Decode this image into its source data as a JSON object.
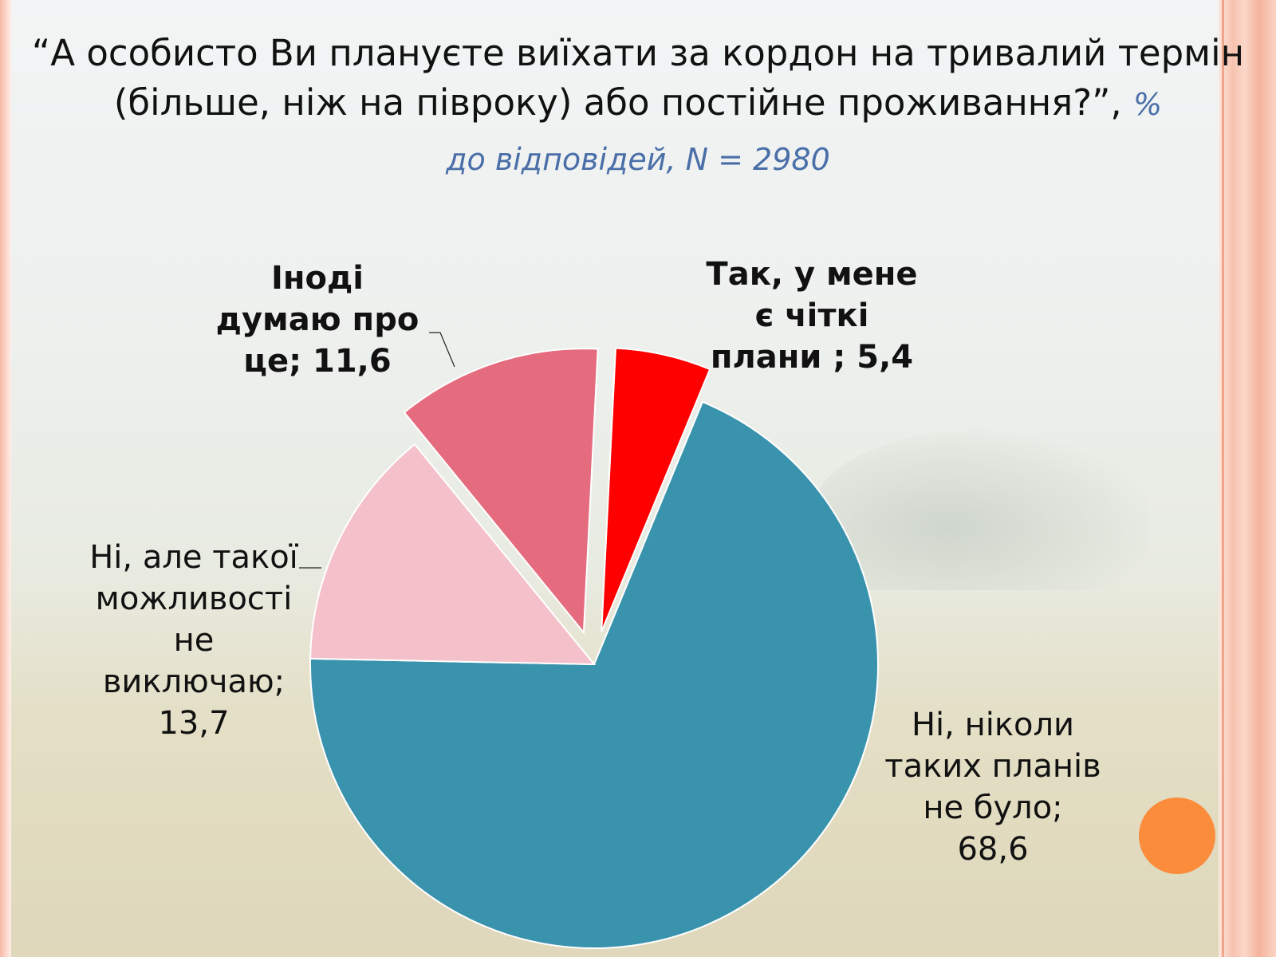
{
  "title": "“А особисто Ви плануєте виїхати за кордон на тривалий термін (більше, ніж на півроку) або постійне проживання?”,",
  "title_unit": "%",
  "subtitle": "до відповідей, N = 2980",
  "colors": {
    "accent": "#fb8c3c",
    "subtitle": "#4a6fa8"
  },
  "chart_data": {
    "type": "pie",
    "legend": "none (data labels next to slices)",
    "slices": [
      {
        "label_lines": [
          "Так, у мене",
          "є чіткі",
          "плани ; 5,4"
        ],
        "value": 5.4,
        "color": "#ff0000",
        "bold": true,
        "exploded": true
      },
      {
        "label_lines": [
          "Ні, ніколи",
          "таких планів",
          "не було;",
          "68,6"
        ],
        "value": 68.6,
        "color": "#3a93ad",
        "bold": false,
        "exploded": false
      },
      {
        "label_lines": [
          "Ні, але такої",
          "можливості",
          "не",
          "виключаю;",
          "13,7"
        ],
        "value": 13.7,
        "color": "#f4c0ca",
        "bold": false,
        "exploded": false
      },
      {
        "label_lines": [
          "Іноді",
          "думаю про",
          "це; 11,6"
        ],
        "value": 11.6,
        "color": "#e56b7e",
        "bold": true,
        "exploded": true
      }
    ]
  }
}
